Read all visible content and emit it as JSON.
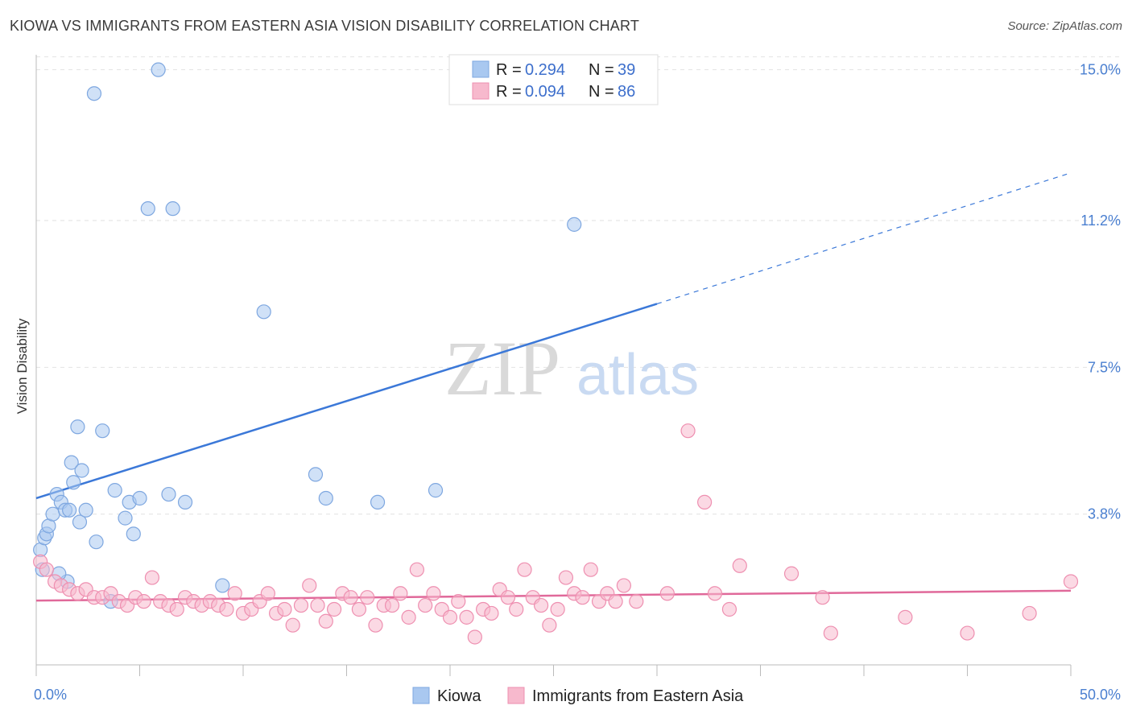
{
  "header": {
    "title": "KIOWA VS IMMIGRANTS FROM EASTERN ASIA VISION DISABILITY CORRELATION CHART",
    "source": "Source: ZipAtlas.com"
  },
  "watermark": {
    "part1": "ZIP",
    "part2": "atlas"
  },
  "chart_data": {
    "type": "scatter",
    "ylabel": "Vision Disability",
    "xlim": [
      0,
      50
    ],
    "ylim": [
      0,
      15.5
    ],
    "x_tick_labels": [
      {
        "value": 0,
        "label": "0.0%"
      },
      {
        "value": 50,
        "label": "50.0%"
      }
    ],
    "y_tick_labels": [
      {
        "value": 3.8,
        "label": "3.8%"
      },
      {
        "value": 7.5,
        "label": "7.5%"
      },
      {
        "value": 11.2,
        "label": "11.2%"
      },
      {
        "value": 15.0,
        "label": "15.0%"
      }
    ],
    "grid": true,
    "legend_top": [
      {
        "r_label": "R =",
        "r_value": "0.294",
        "n_label": "N =",
        "n_value": "39",
        "color": "#a9c8f0",
        "stroke": "#7ea7e0"
      },
      {
        "r_label": "R =",
        "r_value": "0.094",
        "n_label": "N =",
        "n_value": "86",
        "color": "#f7b9cd",
        "stroke": "#ee8fb0"
      }
    ],
    "legend_bottom": [
      {
        "name": "Kiowa",
        "color": "#a9c8f0",
        "stroke": "#7ea7e0"
      },
      {
        "name": "Immigrants from Eastern Asia",
        "color": "#f7b9cd",
        "stroke": "#ee8fb0"
      }
    ],
    "series": [
      {
        "name": "Kiowa",
        "color": "#a9c8f0",
        "stroke": "#7ea7e0",
        "trend_color": "#3b78d8",
        "trend": {
          "x0": 0,
          "y0": 4.2,
          "x1": 30,
          "y1": 9.1,
          "dash_to_x": 50,
          "dash_to_y": 12.4
        },
        "points": [
          [
            0.2,
            2.9
          ],
          [
            0.4,
            3.2
          ],
          [
            0.5,
            3.3
          ],
          [
            0.6,
            3.5
          ],
          [
            0.8,
            3.8
          ],
          [
            1.0,
            4.3
          ],
          [
            1.2,
            4.1
          ],
          [
            1.4,
            3.9
          ],
          [
            1.5,
            2.1
          ],
          [
            1.6,
            3.9
          ],
          [
            1.7,
            5.1
          ],
          [
            1.8,
            4.6
          ],
          [
            2.0,
            6.0
          ],
          [
            2.1,
            3.6
          ],
          [
            2.2,
            4.9
          ],
          [
            2.4,
            3.9
          ],
          [
            2.8,
            14.4
          ],
          [
            2.9,
            3.1
          ],
          [
            3.2,
            5.9
          ],
          [
            3.6,
            1.6
          ],
          [
            3.8,
            4.4
          ],
          [
            4.3,
            3.7
          ],
          [
            4.5,
            4.1
          ],
          [
            4.7,
            3.3
          ],
          [
            5.0,
            4.2
          ],
          [
            5.4,
            11.5
          ],
          [
            5.9,
            15.0
          ],
          [
            6.4,
            4.3
          ],
          [
            6.6,
            11.5
          ],
          [
            7.2,
            4.1
          ],
          [
            9.0,
            2.0
          ],
          [
            11.0,
            8.9
          ],
          [
            13.5,
            4.8
          ],
          [
            14.0,
            4.2
          ],
          [
            16.5,
            4.1
          ],
          [
            19.3,
            4.4
          ],
          [
            26.0,
            11.1
          ],
          [
            0.3,
            2.4
          ],
          [
            1.1,
            2.3
          ]
        ]
      },
      {
        "name": "Immigrants from Eastern Asia",
        "color": "#f7b9cd",
        "stroke": "#ee8fb0",
        "trend_color": "#e0699a",
        "trend": {
          "x0": 0,
          "y0": 1.62,
          "x1": 50,
          "y1": 1.87
        },
        "points": [
          [
            0.2,
            2.6
          ],
          [
            0.5,
            2.4
          ],
          [
            0.9,
            2.1
          ],
          [
            1.2,
            2.0
          ],
          [
            1.6,
            1.9
          ],
          [
            2.0,
            1.8
          ],
          [
            2.4,
            1.9
          ],
          [
            2.8,
            1.7
          ],
          [
            3.2,
            1.7
          ],
          [
            3.6,
            1.8
          ],
          [
            4.0,
            1.6
          ],
          [
            4.4,
            1.5
          ],
          [
            4.8,
            1.7
          ],
          [
            5.2,
            1.6
          ],
          [
            5.6,
            2.2
          ],
          [
            6.0,
            1.6
          ],
          [
            6.4,
            1.5
          ],
          [
            6.8,
            1.4
          ],
          [
            7.2,
            1.7
          ],
          [
            7.6,
            1.6
          ],
          [
            8.0,
            1.5
          ],
          [
            8.4,
            1.6
          ],
          [
            8.8,
            1.5
          ],
          [
            9.2,
            1.4
          ],
          [
            9.6,
            1.8
          ],
          [
            10.0,
            1.3
          ],
          [
            10.4,
            1.4
          ],
          [
            10.8,
            1.6
          ],
          [
            11.2,
            1.8
          ],
          [
            11.6,
            1.3
          ],
          [
            12.0,
            1.4
          ],
          [
            12.4,
            1.0
          ],
          [
            12.8,
            1.5
          ],
          [
            13.2,
            2.0
          ],
          [
            13.6,
            1.5
          ],
          [
            14.0,
            1.1
          ],
          [
            14.4,
            1.4
          ],
          [
            14.8,
            1.8
          ],
          [
            15.2,
            1.7
          ],
          [
            15.6,
            1.4
          ],
          [
            16.0,
            1.7
          ],
          [
            16.4,
            1.0
          ],
          [
            16.8,
            1.5
          ],
          [
            17.2,
            1.5
          ],
          [
            17.6,
            1.8
          ],
          [
            18.0,
            1.2
          ],
          [
            18.4,
            2.4
          ],
          [
            18.8,
            1.5
          ],
          [
            19.2,
            1.8
          ],
          [
            19.6,
            1.4
          ],
          [
            20.0,
            1.2
          ],
          [
            20.4,
            1.6
          ],
          [
            20.8,
            1.2
          ],
          [
            21.2,
            0.7
          ],
          [
            21.6,
            1.4
          ],
          [
            22.0,
            1.3
          ],
          [
            22.4,
            1.9
          ],
          [
            22.8,
            1.7
          ],
          [
            23.2,
            1.4
          ],
          [
            23.6,
            2.4
          ],
          [
            24.0,
            1.7
          ],
          [
            24.4,
            1.5
          ],
          [
            24.8,
            1.0
          ],
          [
            25.2,
            1.4
          ],
          [
            25.6,
            2.2
          ],
          [
            26.0,
            1.8
          ],
          [
            26.4,
            1.7
          ],
          [
            26.8,
            2.4
          ],
          [
            27.2,
            1.6
          ],
          [
            27.6,
            1.8
          ],
          [
            28.0,
            1.6
          ],
          [
            28.4,
            2.0
          ],
          [
            29.0,
            1.6
          ],
          [
            30.5,
            1.8
          ],
          [
            31.5,
            5.9
          ],
          [
            32.3,
            4.1
          ],
          [
            32.8,
            1.8
          ],
          [
            33.5,
            1.4
          ],
          [
            34.0,
            2.5
          ],
          [
            36.5,
            2.3
          ],
          [
            38.0,
            1.7
          ],
          [
            38.4,
            0.8
          ],
          [
            42.0,
            1.2
          ],
          [
            45.0,
            0.8
          ],
          [
            48.0,
            1.3
          ],
          [
            50.0,
            2.1
          ]
        ]
      }
    ]
  }
}
